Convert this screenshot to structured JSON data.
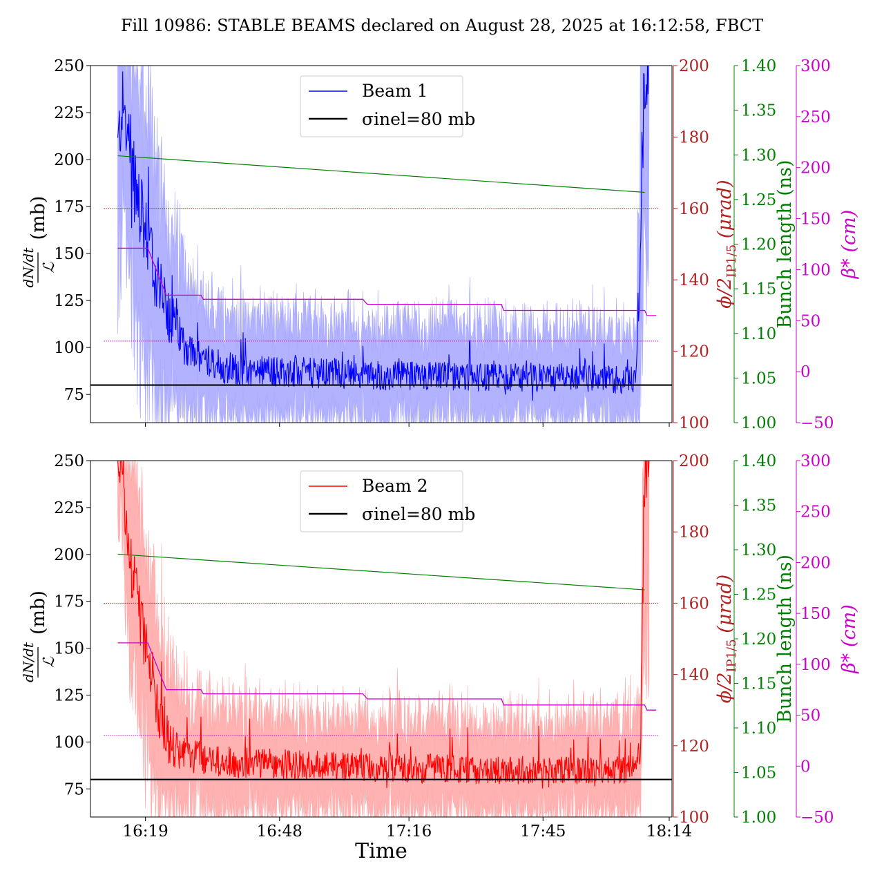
{
  "title": "Fill 10986: STABLE BEAMS declared on August 28, 2025 at 16:12:58, FBCT",
  "colors": {
    "beam1": "#0000ff",
    "beam1_band": "#aaaaff",
    "beam2": "#ff0000",
    "beam2_band": "#ffaaaa",
    "sigma": "#000000",
    "phi": "#b22222",
    "bunch": "#008000",
    "beta": "#cc00cc"
  },
  "axes": {
    "left_label": {
      "num": "dN/dt",
      "den": "ℒ",
      "unit": "(mb)"
    },
    "phi_label": {
      "main": "ϕ/2",
      "sub": "IP1/5",
      "unit": "(μrad)"
    },
    "bunch_label": "Bunch length (ns)",
    "beta_label": "β* (cm)",
    "xlabel": "Time",
    "left_ticks": [
      "75",
      "100",
      "125",
      "150",
      "175",
      "200",
      "225",
      "250"
    ],
    "phi_ticks": [
      "100",
      "120",
      "140",
      "160",
      "180",
      "200"
    ],
    "bunch_ticks": [
      "1.00",
      "1.05",
      "1.10",
      "1.15",
      "1.20",
      "1.25",
      "1.30",
      "1.35",
      "1.40"
    ],
    "beta_ticks": [
      "−50",
      "0",
      "50",
      "100",
      "150",
      "200",
      "250",
      "300"
    ],
    "x_ticks": [
      "16:19",
      "16:48",
      "17:16",
      "17:45",
      "18:14"
    ]
  },
  "chart_data": [
    {
      "type": "line",
      "panel": "top",
      "x_unit": "minutes since 16:00",
      "xlim": [
        7.1,
        132.9
      ],
      "ylim": [
        60,
        250
      ],
      "phi_lim": [
        100,
        200
      ],
      "bunch_lim": [
        1.0,
        1.4
      ],
      "beta_lim": [
        -50,
        300
      ],
      "legend": {
        "beam": "Beam 1",
        "sigma": "σinel=80 mb"
      },
      "sigma_inel_mb": 80,
      "beam": {
        "name": "Beam 1",
        "t": [
          13,
          14,
          15,
          16,
          18,
          20,
          22,
          24,
          26,
          28,
          30,
          35,
          40,
          50,
          60,
          70,
          80,
          90,
          100,
          110,
          120,
          125,
          126,
          127,
          128
        ],
        "mean": [
          205,
          230,
          215,
          195,
          170,
          150,
          130,
          118,
          108,
          100,
          95,
          90,
          88,
          87,
          86,
          85,
          85,
          84,
          84,
          84,
          83,
          83,
          150,
          250,
          250
        ],
        "band_lo": [
          95,
          110,
          120,
          100,
          80,
          70,
          60,
          60,
          60,
          60,
          60,
          60,
          60,
          60,
          60,
          60,
          60,
          60,
          60,
          60,
          60,
          60,
          60,
          60,
          60
        ],
        "band_hi": [
          250,
          250,
          250,
          250,
          240,
          220,
          190,
          170,
          155,
          140,
          130,
          125,
          122,
          120,
          118,
          117,
          116,
          115,
          115,
          115,
          115,
          115,
          250,
          250,
          250
        ]
      },
      "bunch_length": {
        "t": [
          13,
          127
        ],
        "ns": [
          1.299,
          1.258
        ]
      },
      "crossing_angle": {
        "t": [
          10,
          130
        ],
        "urad": [
          160,
          160
        ]
      },
      "beta_star": {
        "t": [
          13,
          19.5,
          23.5,
          31,
          31.5,
          66,
          67,
          96,
          96.5,
          127,
          127.5,
          129.5
        ],
        "cm": [
          121,
          121,
          75,
          75,
          71,
          71,
          66,
          66,
          60,
          60,
          55,
          55
        ]
      },
      "beta_ref": {
        "t": [
          10,
          130
        ],
        "cm": [
          30,
          30
        ]
      }
    },
    {
      "type": "line",
      "panel": "bottom",
      "x_unit": "minutes since 16:00",
      "xlim": [
        7.1,
        132.9
      ],
      "ylim": [
        60,
        250
      ],
      "phi_lim": [
        100,
        200
      ],
      "bunch_lim": [
        1.0,
        1.4
      ],
      "beta_lim": [
        -50,
        300
      ],
      "legend": {
        "beam": "Beam 2",
        "sigma": "σinel=80 mb"
      },
      "sigma_inel_mb": 80,
      "beam": {
        "name": "Beam 2",
        "t": [
          13,
          14,
          15,
          16,
          18,
          20,
          22,
          24,
          26,
          28,
          30,
          35,
          40,
          50,
          60,
          70,
          80,
          90,
          100,
          110,
          120,
          126,
          127,
          128
        ],
        "mean": [
          250,
          240,
          215,
          190,
          165,
          140,
          115,
          100,
          95,
          93,
          92,
          90,
          89,
          88,
          87,
          86,
          86,
          85,
          85,
          85,
          85,
          85,
          250,
          250
        ],
        "band_lo": [
          185,
          170,
          150,
          130,
          110,
          90,
          75,
          65,
          62,
          60,
          60,
          60,
          60,
          60,
          60,
          60,
          60,
          60,
          60,
          60,
          60,
          60,
          60,
          60
        ],
        "band_hi": [
          250,
          250,
          250,
          250,
          235,
          205,
          175,
          150,
          135,
          128,
          125,
          122,
          120,
          118,
          117,
          116,
          116,
          115,
          115,
          115,
          115,
          118,
          250,
          250
        ]
      },
      "bunch_length": {
        "t": [
          13,
          127
        ],
        "ns": [
          1.295,
          1.255
        ]
      },
      "crossing_angle": {
        "t": [
          10,
          130
        ],
        "urad": [
          160,
          160
        ]
      },
      "beta_star": {
        "t": [
          13,
          19.5,
          23.5,
          31,
          31.5,
          66,
          67,
          96,
          96.5,
          127,
          127.5,
          129.5
        ],
        "cm": [
          121,
          121,
          75,
          75,
          71,
          71,
          66,
          66,
          60,
          60,
          55,
          55
        ]
      },
      "beta_ref": {
        "t": [
          10,
          130
        ],
        "cm": [
          30,
          30
        ]
      }
    }
  ]
}
